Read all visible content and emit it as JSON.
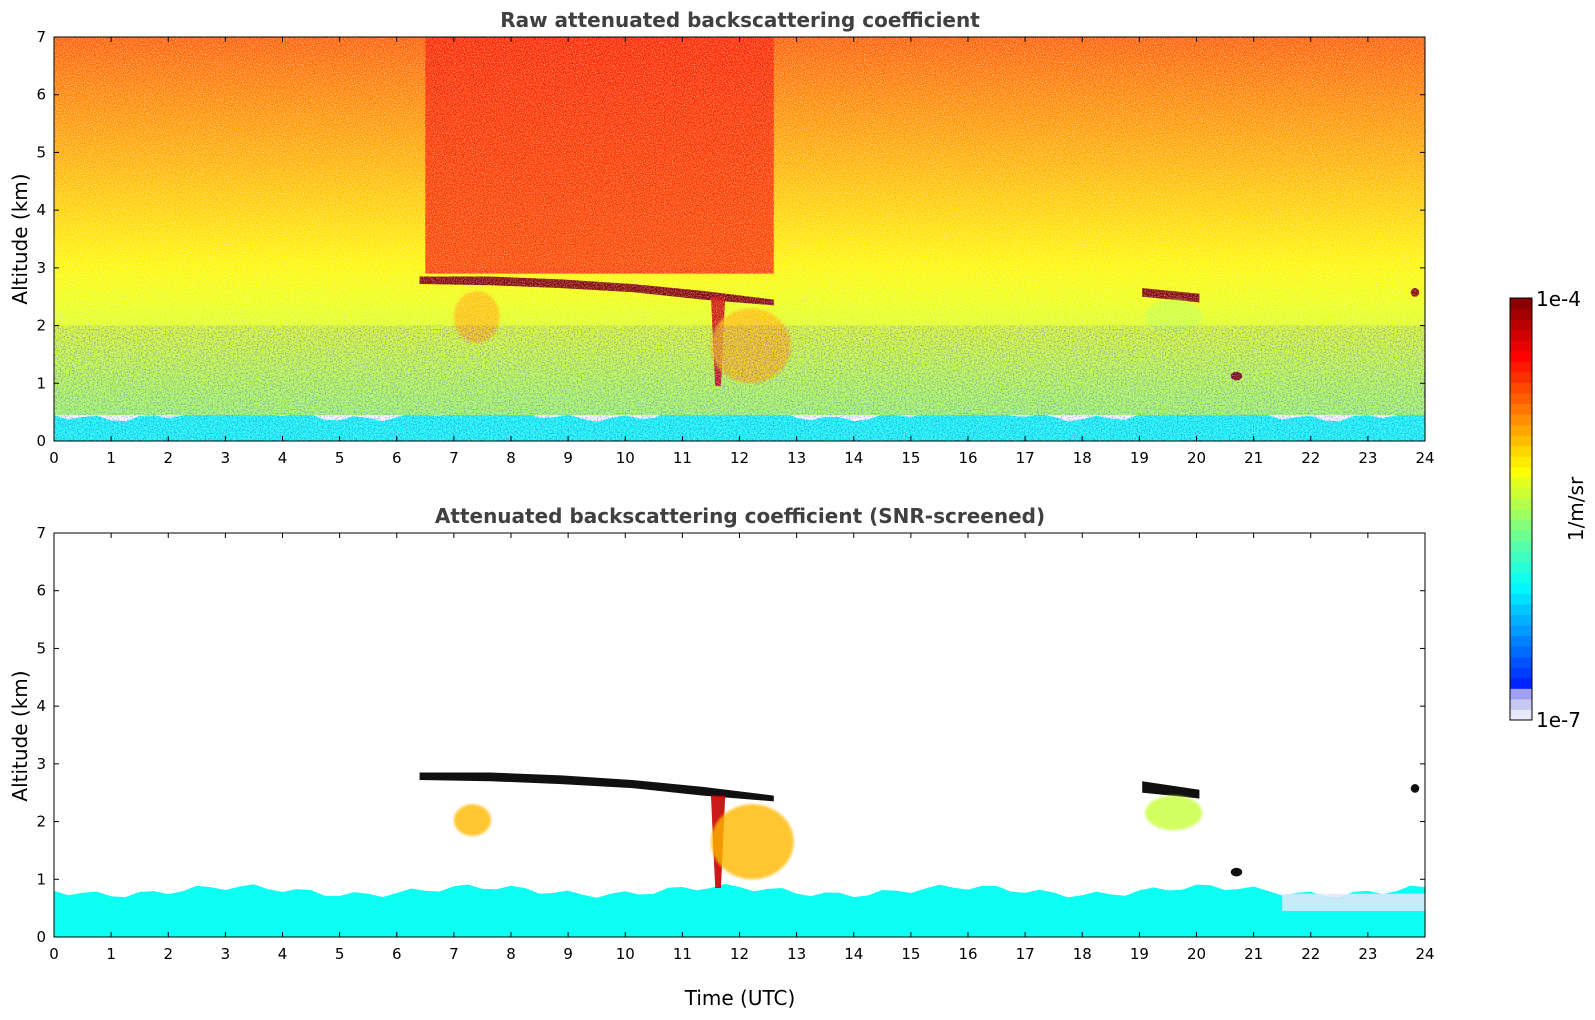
{
  "chart_data": [
    {
      "type": "heatmap",
      "title": "Raw attenuated backscattering coefficient",
      "xlabel": "",
      "ylabel": "Altitude (km)",
      "xlim": [
        0,
        24
      ],
      "ylim": [
        0,
        7
      ],
      "xticks": [
        "0",
        "1",
        "2",
        "3",
        "4",
        "5",
        "6",
        "7",
        "8",
        "9",
        "10",
        "11",
        "12",
        "13",
        "14",
        "15",
        "16",
        "17",
        "18",
        "19",
        "20",
        "21",
        "22",
        "23",
        "24"
      ],
      "yticks": [
        "0",
        "1",
        "2",
        "3",
        "4",
        "5",
        "6",
        "7"
      ],
      "features": [
        {
          "kind": "boundary_layer",
          "x": [
            0,
            24
          ],
          "y": [
            0,
            0.45
          ],
          "value": "1e-6"
        },
        {
          "kind": "noise_gradient",
          "x": [
            0,
            24
          ],
          "y": [
            0.45,
            7
          ],
          "value_bottom": "3e-6",
          "value_top": "2e-5"
        },
        {
          "kind": "bright_noise",
          "x": [
            6.5,
            12.6
          ],
          "y": [
            2.9,
            7
          ],
          "value": "4e-5"
        },
        {
          "kind": "cloud_layer",
          "x": [
            6.4,
            12.6
          ],
          "y_top": [
            2.85,
            2.85,
            2.8,
            2.72,
            2.6,
            2.45
          ],
          "y_bottom": [
            2.72,
            2.7,
            2.65,
            2.58,
            2.45,
            2.35
          ],
          "value": "1e-4"
        },
        {
          "kind": "virga",
          "x": [
            11.5,
            11.75
          ],
          "y": [
            0.95,
            2.5
          ],
          "value": "6e-5"
        },
        {
          "kind": "aerosol_patch",
          "x": [
            7.0,
            7.8
          ],
          "y": [
            1.7,
            2.6
          ],
          "value": "1e-5"
        },
        {
          "kind": "aerosol_patch",
          "x": [
            11.5,
            12.9
          ],
          "y": [
            1.0,
            2.3
          ],
          "value": "1e-5"
        },
        {
          "kind": "cloud_layer",
          "x": [
            19.05,
            20.05
          ],
          "y_top": [
            2.65,
            2.55
          ],
          "y_bottom": [
            2.5,
            2.4
          ],
          "value": "1e-4"
        },
        {
          "kind": "aerosol_patch",
          "x": [
            19.1,
            20.1
          ],
          "y": [
            1.85,
            2.45
          ],
          "value": "4e-6"
        },
        {
          "kind": "cloud_spot",
          "x": [
            20.6,
            20.8
          ],
          "y": [
            1.05,
            1.2
          ],
          "value": "1e-4"
        },
        {
          "kind": "cloud_spot",
          "x": [
            23.75,
            23.9
          ],
          "y": [
            2.5,
            2.65
          ],
          "value": "1e-4"
        }
      ]
    },
    {
      "type": "heatmap",
      "title": "Attenuated backscattering coefficient (SNR-screened)",
      "xlabel": "Time (UTC)",
      "ylabel": "Altitude (km)",
      "xlim": [
        0,
        24
      ],
      "ylim": [
        0,
        7
      ],
      "xticks": [
        "0",
        "1",
        "2",
        "3",
        "4",
        "5",
        "6",
        "7",
        "8",
        "9",
        "10",
        "11",
        "12",
        "13",
        "14",
        "15",
        "16",
        "17",
        "18",
        "19",
        "20",
        "21",
        "22",
        "23",
        "24"
      ],
      "yticks": [
        "0",
        "1",
        "2",
        "3",
        "4",
        "5",
        "6",
        "7"
      ],
      "features": [
        {
          "kind": "boundary_layer",
          "x": [
            0,
            24
          ],
          "y": [
            0,
            0.8
          ],
          "value": "1e-6"
        },
        {
          "kind": "cloud_layer",
          "x": [
            6.4,
            12.6
          ],
          "y_top": [
            2.85,
            2.85,
            2.8,
            2.72,
            2.6,
            2.45
          ],
          "y_bottom": [
            2.72,
            2.7,
            2.65,
            2.58,
            2.45,
            2.35
          ],
          "value": "saturated"
        },
        {
          "kind": "virga",
          "x": [
            11.5,
            11.75
          ],
          "y": [
            0.85,
            2.45
          ],
          "value": "6e-5"
        },
        {
          "kind": "aerosol_patch",
          "x": [
            7.0,
            7.65
          ],
          "y": [
            1.75,
            2.3
          ],
          "value": "1e-5"
        },
        {
          "kind": "aerosol_patch",
          "x": [
            11.5,
            12.95
          ],
          "y": [
            1.0,
            2.3
          ],
          "value": "1e-5"
        },
        {
          "kind": "cloud_layer",
          "x": [
            19.05,
            20.05
          ],
          "y_top": [
            2.7,
            2.55
          ],
          "y_bottom": [
            2.5,
            2.4
          ],
          "value": "saturated"
        },
        {
          "kind": "aerosol_patch",
          "x": [
            19.1,
            20.1
          ],
          "y": [
            1.85,
            2.45
          ],
          "value": "4e-6"
        },
        {
          "kind": "cloud_spot",
          "x": [
            20.6,
            20.8
          ],
          "y": [
            1.05,
            1.2
          ],
          "value": "saturated"
        },
        {
          "kind": "cloud_spot",
          "x": [
            23.75,
            23.9
          ],
          "y": [
            2.5,
            2.65
          ],
          "value": "saturated"
        }
      ]
    }
  ],
  "colorbar": {
    "label": "1/m/sr",
    "max_label": "1e-4",
    "min_label": "1e-7",
    "colormap": "jet",
    "scale": "log",
    "range": [
      "1e-7",
      "1e-4"
    ],
    "colors": {
      "saturated": "#101010",
      "low_fade": "#e8e8f8"
    }
  }
}
